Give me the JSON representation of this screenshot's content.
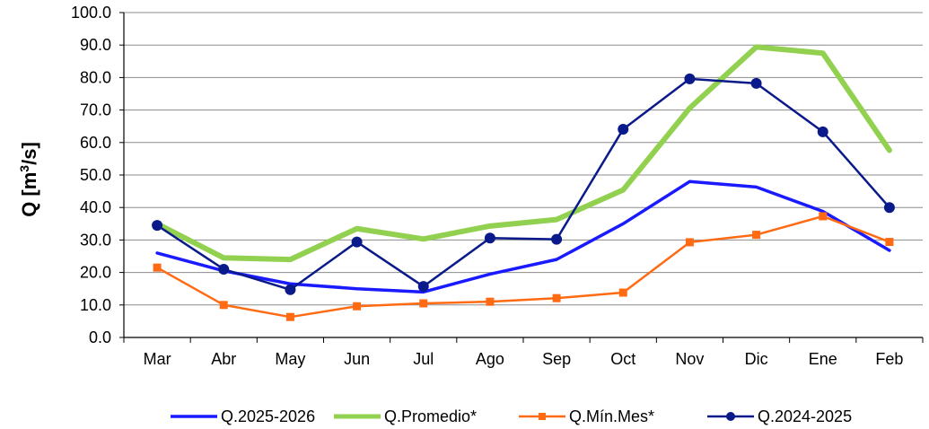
{
  "chart_data": {
    "type": "line",
    "categories": [
      "Mar",
      "Abr",
      "May",
      "Jun",
      "Jul",
      "Ago",
      "Sep",
      "Oct",
      "Nov",
      "Dic",
      "Ene",
      "Feb"
    ],
    "ylim": [
      0,
      100
    ],
    "yticks": [
      0,
      10,
      20,
      30,
      40,
      50,
      60,
      70,
      80,
      90,
      100
    ],
    "ytick_labels": [
      "0.0",
      "10.0",
      "20.0",
      "30.0",
      "40.0",
      "50.0",
      "60.0",
      "70.0",
      "80.0",
      "90.0",
      "100.0"
    ],
    "ylabel_prefix": "Q [m",
    "ylabel_sup": "3",
    "ylabel_suffix": "/s]",
    "xlabel": "",
    "grid": "horizontal",
    "legend_position": "bottom",
    "series": [
      {
        "name": "Q.2025-2026",
        "color": "#1a1aff",
        "marker": "none",
        "width": 3.5,
        "values": [
          26.0,
          20.5,
          16.5,
          15.0,
          14.0,
          19.5,
          24.0,
          35.0,
          48.0,
          46.3,
          38.8,
          26.8
        ]
      },
      {
        "name": "Q.Promedio*",
        "color": "#92d050",
        "marker": "none",
        "width": 6,
        "values": [
          35.0,
          24.5,
          24.0,
          33.5,
          30.3,
          34.3,
          36.3,
          45.4,
          70.6,
          89.4,
          87.5,
          57.6
        ]
      },
      {
        "name": "Q.Mín.Mes*",
        "color": "#ff6a13",
        "marker": "square",
        "width": 2.5,
        "values": [
          21.5,
          10.0,
          6.3,
          9.6,
          10.5,
          11.0,
          12.1,
          13.8,
          29.3,
          31.6,
          37.3,
          29.4
        ]
      },
      {
        "name": "Q.2024-2025",
        "color": "#0a1a8a",
        "marker": "circle",
        "width": 2.5,
        "values": [
          34.5,
          21.0,
          14.7,
          29.4,
          15.7,
          30.6,
          30.2,
          64.1,
          79.6,
          78.2,
          63.3,
          40.0
        ]
      }
    ]
  }
}
